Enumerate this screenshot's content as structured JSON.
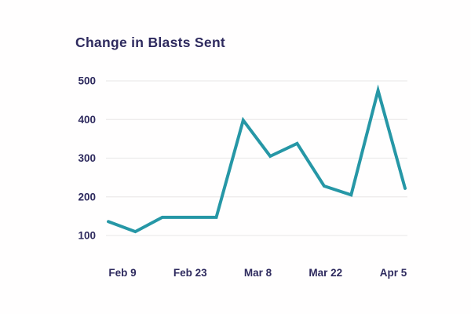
{
  "chart_data": {
    "type": "line",
    "title": "Change in Blasts Sent",
    "x_tick_labels": [
      "Feb 9",
      "Feb 23",
      "Mar 8",
      "Mar 22",
      "Apr 5"
    ],
    "y_tick_labels": [
      "100",
      "200",
      "300",
      "400",
      "500"
    ],
    "values": [
      136,
      110,
      147,
      147,
      147,
      398,
      305,
      338,
      228,
      205,
      475,
      222
    ],
    "ylim": [
      100,
      500
    ],
    "xlabel": "",
    "ylabel": "",
    "grid": "horizontal",
    "legend": "none",
    "line_color": "#2697a6",
    "grid_color": "#eceaea",
    "text_color": "#2e2a5e",
    "background_color": "#fffefe"
  }
}
